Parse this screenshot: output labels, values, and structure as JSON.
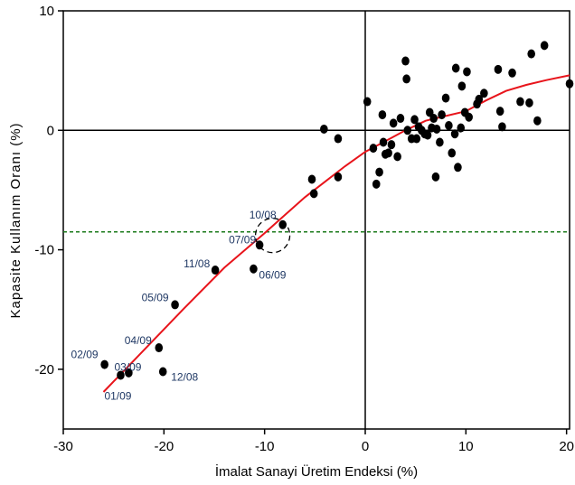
{
  "chart_data": {
    "type": "scatter",
    "xlabel": "İmalat Sanayi Üretim Endeksi (%)",
    "ylabel": "Kapasite Kullanım Oranı (%)",
    "xlim": [
      -30,
      20.3
    ],
    "ylim": [
      -25,
      10
    ],
    "x_ticks": [
      -30,
      -20,
      -10,
      0,
      10,
      20
    ],
    "y_ticks": [
      -20,
      -10,
      0,
      10
    ],
    "points": [
      {
        "x": -25.9,
        "y": -19.6
      },
      {
        "x": -24.3,
        "y": -20.5
      },
      {
        "x": -23.5,
        "y": -20.3
      },
      {
        "x": -20.5,
        "y": -18.2
      },
      {
        "x": -20.1,
        "y": -20.2
      },
      {
        "x": -18.9,
        "y": -14.6
      },
      {
        "x": -14.9,
        "y": -11.7
      },
      {
        "x": -11.1,
        "y": -11.6
      },
      {
        "x": -10.5,
        "y": -9.6
      },
      {
        "x": -8.2,
        "y": -7.9
      },
      {
        "x": -5.3,
        "y": -4.1
      },
      {
        "x": -5.1,
        "y": -5.3
      },
      {
        "x": -4.1,
        "y": 0.1
      },
      {
        "x": -2.7,
        "y": -0.7
      },
      {
        "x": -2.7,
        "y": -3.9
      },
      {
        "x": 0.2,
        "y": 2.4
      },
      {
        "x": 0.8,
        "y": -1.5
      },
      {
        "x": 1.1,
        "y": -4.5
      },
      {
        "x": 1.4,
        "y": -3.5
      },
      {
        "x": 1.7,
        "y": 1.3
      },
      {
        "x": 1.8,
        "y": -1.0
      },
      {
        "x": 2.0,
        "y": -2.0
      },
      {
        "x": 2.3,
        "y": -1.9
      },
      {
        "x": 2.6,
        "y": -1.2
      },
      {
        "x": 2.8,
        "y": 0.6
      },
      {
        "x": 3.2,
        "y": -2.2
      },
      {
        "x": 3.5,
        "y": 1.0
      },
      {
        "x": 4.0,
        "y": 5.8
      },
      {
        "x": 4.1,
        "y": 4.3
      },
      {
        "x": 4.2,
        "y": 0.0
      },
      {
        "x": 4.6,
        "y": -0.7
      },
      {
        "x": 4.9,
        "y": 0.9
      },
      {
        "x": 5.1,
        "y": -0.7
      },
      {
        "x": 5.3,
        "y": 0.3
      },
      {
        "x": 5.6,
        "y": 0.0
      },
      {
        "x": 5.9,
        "y": -0.3
      },
      {
        "x": 6.2,
        "y": -0.4
      },
      {
        "x": 6.4,
        "y": 1.5
      },
      {
        "x": 6.6,
        "y": 0.2
      },
      {
        "x": 6.8,
        "y": 1.0
      },
      {
        "x": 7.0,
        "y": -3.9
      },
      {
        "x": 7.1,
        "y": 0.1
      },
      {
        "x": 7.4,
        "y": -1.0
      },
      {
        "x": 7.6,
        "y": 1.3
      },
      {
        "x": 8.0,
        "y": 2.7
      },
      {
        "x": 8.3,
        "y": 0.4
      },
      {
        "x": 8.6,
        "y": -1.9
      },
      {
        "x": 8.9,
        "y": -0.3
      },
      {
        "x": 9.0,
        "y": 5.2
      },
      {
        "x": 9.2,
        "y": -3.1
      },
      {
        "x": 9.5,
        "y": 0.2
      },
      {
        "x": 9.6,
        "y": 3.7
      },
      {
        "x": 9.9,
        "y": 1.5
      },
      {
        "x": 10.1,
        "y": 4.9
      },
      {
        "x": 10.3,
        "y": 1.1
      },
      {
        "x": 11.1,
        "y": 2.2
      },
      {
        "x": 11.3,
        "y": 2.6
      },
      {
        "x": 11.8,
        "y": 3.1
      },
      {
        "x": 13.2,
        "y": 5.1
      },
      {
        "x": 13.4,
        "y": 1.6
      },
      {
        "x": 13.6,
        "y": 0.3
      },
      {
        "x": 14.6,
        "y": 4.8
      },
      {
        "x": 15.4,
        "y": 2.4
      },
      {
        "x": 16.3,
        "y": 2.3
      },
      {
        "x": 16.5,
        "y": 6.4
      },
      {
        "x": 17.1,
        "y": 0.8
      },
      {
        "x": 17.8,
        "y": 7.1
      },
      {
        "x": 20.3,
        "y": 3.9
      }
    ],
    "fit_line": {
      "color": "#e8141b",
      "x": [
        -26,
        -22,
        -18,
        -14,
        -10,
        -8,
        -6,
        -4,
        -2,
        0,
        2,
        4,
        6,
        8,
        10,
        12,
        14,
        16,
        18,
        20.3
      ],
      "y": [
        -21.9,
        -18.4,
        -14.9,
        -11.5,
        -8.6,
        -7.1,
        -5.6,
        -4.3,
        -3.0,
        -1.8,
        -0.9,
        0.0,
        0.8,
        1.2,
        1.6,
        2.5,
        3.3,
        3.8,
        4.2,
        4.6
      ]
    },
    "reference_line": {
      "y": -8.5,
      "color": "#1b7a1b",
      "style": "dashed"
    },
    "zero_lines": {
      "x": 0,
      "y": 0
    },
    "highlight_circle": {
      "x": -9.2,
      "y": -8.8
    },
    "annotations": [
      {
        "label": "02/09",
        "x": -26.0,
        "y": -19.6
      },
      {
        "label": "03/09",
        "x": -24.3,
        "y": -20.5
      },
      {
        "label": "01/09",
        "x": -24.3,
        "y": -20.5
      },
      {
        "label": "04/09",
        "x": -20.5,
        "y": -18.2
      },
      {
        "label": "12/08",
        "x": -20.1,
        "y": -20.2
      },
      {
        "label": "05/09",
        "x": -18.9,
        "y": -14.6
      },
      {
        "label": "11/08",
        "x": -14.9,
        "y": -11.7
      },
      {
        "label": "06/09",
        "x": -11.1,
        "y": -11.6
      },
      {
        "label": "07/09",
        "x": -10.5,
        "y": -9.6
      },
      {
        "label": "10/08",
        "x": -8.2,
        "y": -7.9
      }
    ],
    "grid": false,
    "legend": "none"
  }
}
